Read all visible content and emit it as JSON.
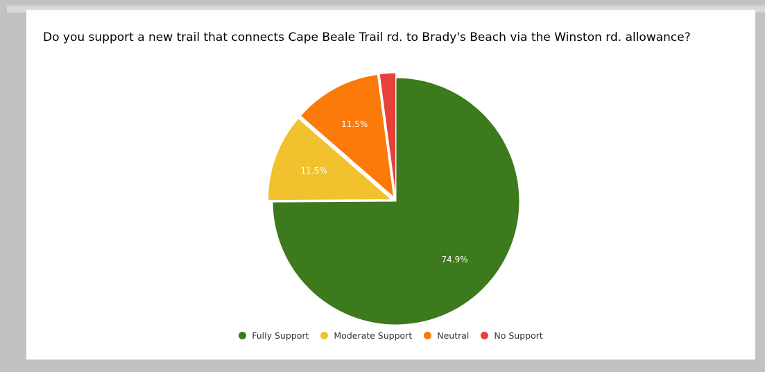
{
  "chart_data": {
    "type": "pie",
    "title": "Do you support a new trail that connects Cape Beale Trail rd. to Brady's Beach via the Winston rd. allowance?",
    "categories": [
      "Fully Support",
      "Moderate Support",
      "Neutral",
      "No Support"
    ],
    "values": [
      74.9,
      11.5,
      11.5,
      2.1
    ],
    "labels": [
      "74.9%",
      "11.5%",
      "11.5%",
      ""
    ],
    "colors": [
      "#3d7a1e",
      "#f2c12e",
      "#fb7a0a",
      "#e8403a"
    ],
    "exploded": [
      "Moderate Support",
      "Neutral",
      "No Support"
    ],
    "start": "12 o'clock",
    "direction": "clockwise",
    "legend_position": "bottom"
  }
}
